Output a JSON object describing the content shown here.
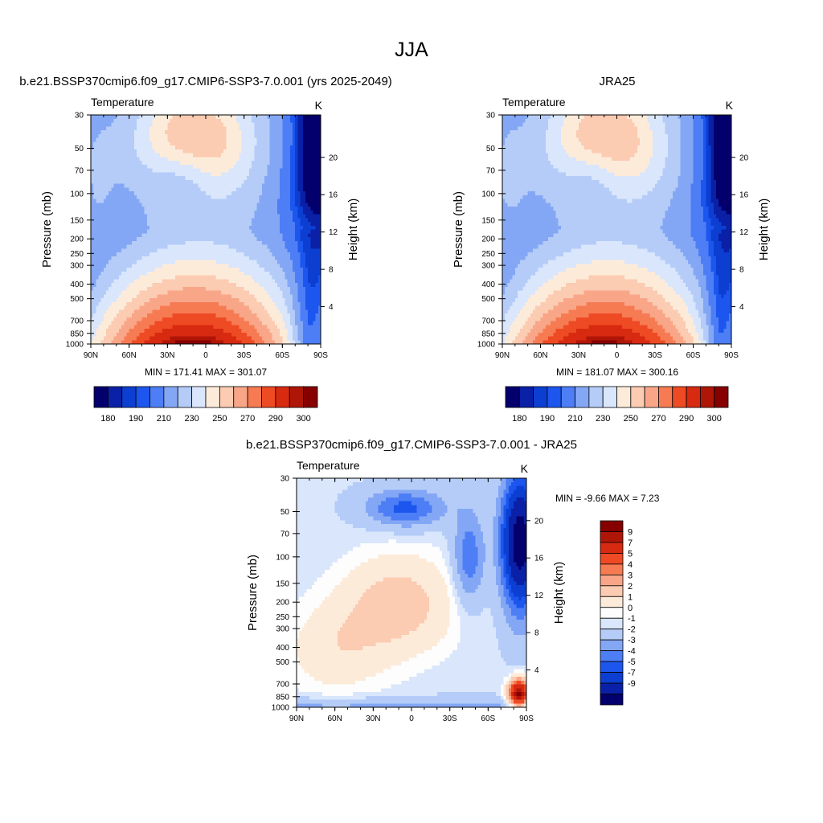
{
  "figure": {
    "main_title": "JJA"
  },
  "chart_data": [
    {
      "type": "heatmap",
      "id": "model",
      "title": "b.e21.BSSP370cmip6.f09_g17.CMIP6-SSP3-7.0.001 (yrs 2025-2049)",
      "variable": "Temperature",
      "units": "K",
      "ylabel": "Pressure (mb)",
      "y2label": "Height (km)",
      "x_ticks": [
        "90N",
        "60N",
        "30N",
        "0",
        "30S",
        "60S",
        "90S"
      ],
      "p_ticks": [
        "30",
        "50",
        "70",
        "100",
        "150",
        "200",
        "250",
        "300",
        "400",
        "500",
        "700",
        "850",
        "1000"
      ],
      "z_ticks": [
        "4",
        "8",
        "12",
        "16",
        "20"
      ],
      "stats": "MIN = 171.41  MAX = 301.07",
      "min": 171.41,
      "max": 301.07,
      "colorbar_labels": [
        "180",
        "190",
        "210",
        "230",
        "250",
        "270",
        "290",
        "300"
      ],
      "colorbar_colors": [
        "#03006d",
        "#0a20a7",
        "#0c3fd1",
        "#1c56ee",
        "#4d7ef5",
        "#84a7f5",
        "#b4ccf7",
        "#d9e6fc",
        "#fdebda",
        "#fbcbb2",
        "#f9a688",
        "#f67b53",
        "#ee4a24",
        "#d72a10",
        "#b01607",
        "#860000"
      ]
    },
    {
      "type": "heatmap",
      "id": "obs",
      "title": "JRA25",
      "variable": "Temperature",
      "units": "K",
      "ylabel": "Pressure (mb)",
      "y2label": "Height (km)",
      "x_ticks": [
        "90N",
        "60N",
        "30N",
        "0",
        "30S",
        "60S",
        "90S"
      ],
      "p_ticks": [
        "30",
        "50",
        "70",
        "100",
        "150",
        "200",
        "250",
        "300",
        "400",
        "500",
        "700",
        "850",
        "1000"
      ],
      "z_ticks": [
        "4",
        "8",
        "12",
        "16",
        "20"
      ],
      "stats": "MIN = 181.07  MAX = 300.16",
      "min": 181.07,
      "max": 300.16,
      "colorbar_labels": [
        "180",
        "190",
        "210",
        "230",
        "250",
        "270",
        "290",
        "300"
      ],
      "colorbar_colors": [
        "#03006d",
        "#0a20a7",
        "#0c3fd1",
        "#1c56ee",
        "#4d7ef5",
        "#84a7f5",
        "#b4ccf7",
        "#d9e6fc",
        "#fdebda",
        "#fbcbb2",
        "#f9a688",
        "#f67b53",
        "#ee4a24",
        "#d72a10",
        "#b01607",
        "#860000"
      ]
    },
    {
      "type": "heatmap",
      "id": "diff",
      "title": "b.e21.BSSP370cmip6.f09_g17.CMIP6-SSP3-7.0.001 - JRA25",
      "variable": "Temperature",
      "units": "K",
      "ylabel": "Pressure (mb)",
      "y2label": "Height (km)",
      "x_ticks": [
        "90N",
        "60N",
        "30N",
        "0",
        "30S",
        "60S",
        "90S"
      ],
      "p_ticks": [
        "30",
        "50",
        "70",
        "100",
        "150",
        "200",
        "250",
        "300",
        "400",
        "500",
        "700",
        "850",
        "1000"
      ],
      "z_ticks": [
        "4",
        "8",
        "12",
        "16",
        "20"
      ],
      "stats": "MIN =  -9.66  MAX =   7.23",
      "min": -9.66,
      "max": 7.23,
      "colorbar_labels": [
        "9",
        "7",
        "5",
        "4",
        "3",
        "2",
        "1",
        "0",
        "-1",
        "-2",
        "-3",
        "-4",
        "-5",
        "-7",
        "-9"
      ],
      "colorbar_colors": [
        "#860000",
        "#b01607",
        "#d72a10",
        "#ee4a24",
        "#f67b53",
        "#f9a688",
        "#fbcbb2",
        "#fdebda",
        "#fdfdfd",
        "#d9e6fc",
        "#b4ccf7",
        "#84a7f5",
        "#4d7ef5",
        "#1c56ee",
        "#0c3fd1",
        "#0a20a7",
        "#03006d"
      ]
    }
  ]
}
